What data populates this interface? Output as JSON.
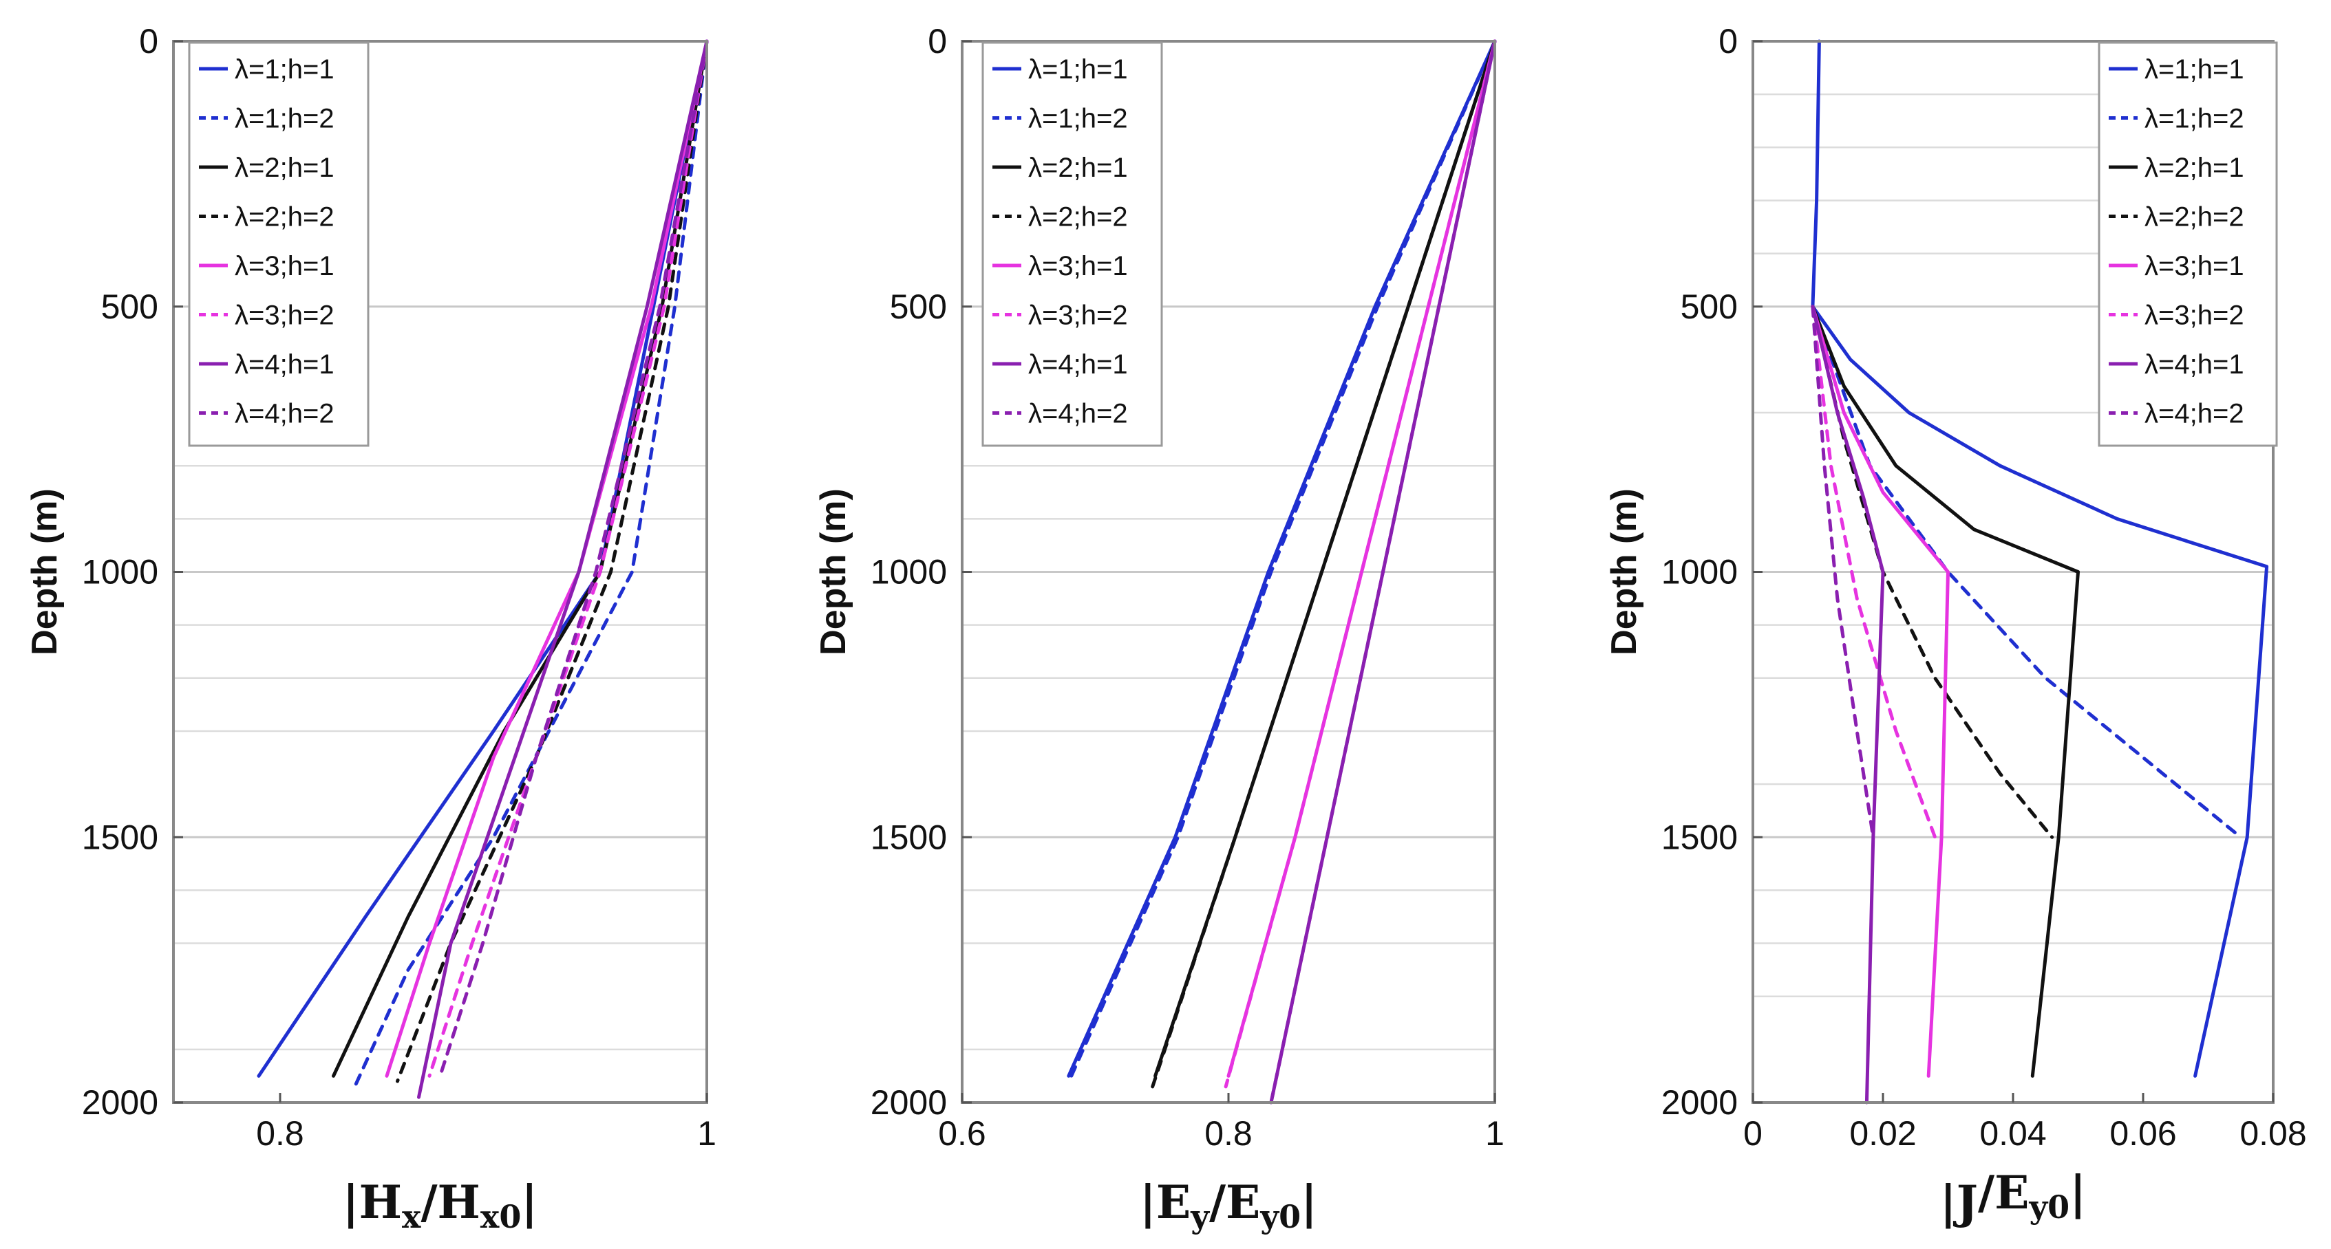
{
  "chart_data": [
    {
      "type": "line",
      "ylabel": "Depth (m)",
      "xlabel_parts": [
        "|",
        "H",
        "x",
        "/",
        "H",
        "x0",
        "|"
      ],
      "xlim": [
        0.75,
        1.0
      ],
      "ylim": [
        0,
        2000
      ],
      "y_inverted": true,
      "xticks": [
        0.8,
        1
      ],
      "xtick_labels": [
        "0.8",
        "1"
      ],
      "yticks": [
        0,
        500,
        1000,
        1500,
        2000
      ],
      "ytick_labels": [
        "0",
        "500",
        "1000",
        "1500",
        "2000"
      ],
      "minor_gridlines_depth": [
        800,
        900,
        1100,
        1200,
        1300,
        1600,
        1700,
        1900
      ],
      "legend_position": "top-left",
      "series": [
        {
          "name": "λ=1;h=1",
          "color": "#1f2fd0",
          "style": "solid",
          "x": [
            1.0,
            0.975,
            0.95,
            0.9,
            0.84,
            0.79
          ],
          "y": [
            0,
            500,
            1000,
            1300,
            1650,
            1950
          ]
        },
        {
          "name": "λ=1;h=2",
          "color": "#1f2fd0",
          "style": "dashed",
          "x": [
            1.0,
            0.985,
            0.965,
            0.9,
            0.86,
            0.835
          ],
          "y": [
            0,
            500,
            1000,
            1500,
            1750,
            1970
          ]
        },
        {
          "name": "λ=2;h=1",
          "color": "#111111",
          "style": "solid",
          "x": [
            1.0,
            0.979,
            0.95,
            0.905,
            0.86,
            0.825
          ],
          "y": [
            0,
            500,
            1000,
            1300,
            1650,
            1950
          ]
        },
        {
          "name": "λ=2;h=2",
          "color": "#111111",
          "style": "dashed",
          "x": [
            1.0,
            0.982,
            0.955,
            0.92,
            0.88,
            0.855
          ],
          "y": [
            0,
            500,
            1000,
            1350,
            1700,
            1960
          ]
        },
        {
          "name": "λ=3;h=1",
          "color": "#e633e0",
          "style": "solid",
          "x": [
            1.0,
            0.974,
            0.94,
            0.9,
            0.87,
            0.85
          ],
          "y": [
            0,
            500,
            1000,
            1350,
            1700,
            1950
          ]
        },
        {
          "name": "λ=3;h=2",
          "color": "#e633e0",
          "style": "dashed",
          "x": [
            1.0,
            0.98,
            0.95,
            0.92,
            0.89,
            0.87
          ],
          "y": [
            0,
            500,
            1000,
            1350,
            1700,
            1950
          ]
        },
        {
          "name": "λ=4;h=1",
          "color": "#8a1fb0",
          "style": "solid",
          "x": [
            1.0,
            0.972,
            0.94,
            0.91,
            0.88,
            0.865
          ],
          "y": [
            0,
            500,
            1000,
            1350,
            1700,
            1990
          ]
        },
        {
          "name": "λ=4;h=2",
          "color": "#8a1fb0",
          "style": "dashed",
          "x": [
            1.0,
            0.978,
            0.948,
            0.92,
            0.895,
            0.875
          ],
          "y": [
            0,
            500,
            1000,
            1350,
            1700,
            1950
          ]
        }
      ]
    },
    {
      "type": "line",
      "ylabel": "Depth (m)",
      "xlabel_parts": [
        "|",
        "E",
        "y",
        "/",
        "E",
        "y0",
        "|"
      ],
      "xlim": [
        0.6,
        1.0
      ],
      "ylim": [
        0,
        2000
      ],
      "y_inverted": true,
      "xticks": [
        0.6,
        0.8,
        1
      ],
      "xtick_labels": [
        "0.6",
        "0.8",
        "1"
      ],
      "yticks": [
        0,
        500,
        1000,
        1500,
        2000
      ],
      "ytick_labels": [
        "0",
        "500",
        "1000",
        "1500",
        "2000"
      ],
      "minor_gridlines_depth": [
        800,
        900,
        1100,
        1200,
        1300,
        1600,
        1700,
        1900
      ],
      "legend_position": "top-left",
      "series": [
        {
          "name": "λ=1;h=1",
          "color": "#1f2fd0",
          "style": "solid",
          "x": [
            1.0,
            0.91,
            0.83,
            0.76,
            0.68
          ],
          "y": [
            0,
            500,
            1000,
            1500,
            1950
          ]
        },
        {
          "name": "λ=1;h=2",
          "color": "#1f2fd0",
          "style": "dashed",
          "x": [
            1.0,
            0.912,
            0.832,
            0.762,
            0.682
          ],
          "y": [
            0,
            500,
            1000,
            1500,
            1950
          ]
        },
        {
          "name": "λ=2;h=1",
          "color": "#111111",
          "style": "solid",
          "x": [
            1.0,
            0.935,
            0.87,
            0.805,
            0.745
          ],
          "y": [
            0,
            500,
            1000,
            1500,
            1950
          ]
        },
        {
          "name": "λ=2;h=2",
          "color": "#111111",
          "style": "dashed",
          "x": [
            1.0,
            0.935,
            0.87,
            0.805,
            0.743
          ],
          "y": [
            0,
            500,
            1000,
            1500,
            1970
          ]
        },
        {
          "name": "λ=3;h=1",
          "color": "#e633e0",
          "style": "solid",
          "x": [
            1.0,
            0.95,
            0.9,
            0.85,
            0.8
          ],
          "y": [
            0,
            500,
            1000,
            1500,
            1950
          ]
        },
        {
          "name": "λ=3;h=2",
          "color": "#e633e0",
          "style": "dashed",
          "x": [
            1.0,
            0.95,
            0.9,
            0.85,
            0.798
          ],
          "y": [
            0,
            500,
            1000,
            1500,
            1970
          ]
        },
        {
          "name": "λ=4;h=1",
          "color": "#8a1fb0",
          "style": "solid",
          "x": [
            1.0,
            0.958,
            0.916,
            0.874,
            0.832
          ],
          "y": [
            0,
            500,
            1000,
            1500,
            2000
          ]
        },
        {
          "name": "λ=4;h=2",
          "color": "#8a1fb0",
          "style": "dashed",
          "x": [
            1.0,
            0.958,
            0.916,
            0.874,
            0.832
          ],
          "y": [
            0,
            500,
            1000,
            1500,
            2000
          ]
        }
      ]
    },
    {
      "type": "line",
      "ylabel": "Depth (m)",
      "xlabel_parts": [
        "|",
        "J",
        "",
        "/",
        "E",
        "y0",
        "|"
      ],
      "xlim": [
        0,
        0.08
      ],
      "ylim": [
        0,
        2000
      ],
      "y_inverted": true,
      "xticks": [
        0,
        0.02,
        0.04,
        0.06,
        0.08
      ],
      "xtick_labels": [
        "0",
        "0.02",
        "0.04",
        "0.06",
        "0.08"
      ],
      "yticks": [
        0,
        500,
        1000,
        1500,
        2000
      ],
      "ytick_labels": [
        "0",
        "500",
        "1000",
        "1500",
        "2000"
      ],
      "minor_gridlines_depth": [
        100,
        200,
        300,
        400,
        700,
        1100,
        1200,
        1400,
        1600,
        1700,
        1800
      ],
      "legend_position": "top-right",
      "series": [
        {
          "name": "λ=1;h=1",
          "color": "#1f2fd0",
          "style": "solid",
          "x": [
            0.0102,
            0.0098,
            0.0092,
            0.015,
            0.024,
            0.038,
            0.056,
            0.079,
            0.076,
            0.068
          ],
          "y": [
            0,
            300,
            500,
            600,
            700,
            800,
            900,
            990,
            1500,
            1950
          ]
        },
        {
          "name": "λ=1;h=2",
          "color": "#1f2fd0",
          "style": "dashed",
          "x": [
            0.0092,
            0.018,
            0.03,
            0.045,
            0.06,
            0.075
          ],
          "y": [
            500,
            800,
            1000,
            1200,
            1350,
            1500
          ]
        },
        {
          "name": "λ=2;h=1",
          "color": "#111111",
          "style": "solid",
          "x": [
            0.0092,
            0.014,
            0.022,
            0.034,
            0.05,
            0.047,
            0.043
          ],
          "y": [
            500,
            650,
            800,
            920,
            1000,
            1500,
            1950
          ]
        },
        {
          "name": "λ=2;h=2",
          "color": "#111111",
          "style": "dashed",
          "x": [
            0.0092,
            0.014,
            0.02,
            0.028,
            0.038,
            0.046
          ],
          "y": [
            500,
            750,
            1000,
            1200,
            1380,
            1500
          ]
        },
        {
          "name": "λ=3;h=1",
          "color": "#e633e0",
          "style": "solid",
          "x": [
            0.0092,
            0.014,
            0.02,
            0.03,
            0.029,
            0.027
          ],
          "y": [
            500,
            700,
            850,
            1000,
            1500,
            1950
          ]
        },
        {
          "name": "λ=3;h=2",
          "color": "#e633e0",
          "style": "dashed",
          "x": [
            0.0092,
            0.012,
            0.016,
            0.022,
            0.028
          ],
          "y": [
            500,
            800,
            1050,
            1300,
            1500
          ]
        },
        {
          "name": "λ=4;h=1",
          "color": "#8a1fb0",
          "style": "solid",
          "x": [
            0.0092,
            0.013,
            0.017,
            0.02,
            0.0185,
            0.0175
          ],
          "y": [
            500,
            700,
            860,
            1000,
            1500,
            2000
          ]
        },
        {
          "name": "λ=4;h=2",
          "color": "#8a1fb0",
          "style": "dashed",
          "x": [
            0.0092,
            0.011,
            0.013,
            0.016,
            0.0185
          ],
          "y": [
            500,
            800,
            1050,
            1300,
            1500
          ]
        }
      ]
    }
  ]
}
